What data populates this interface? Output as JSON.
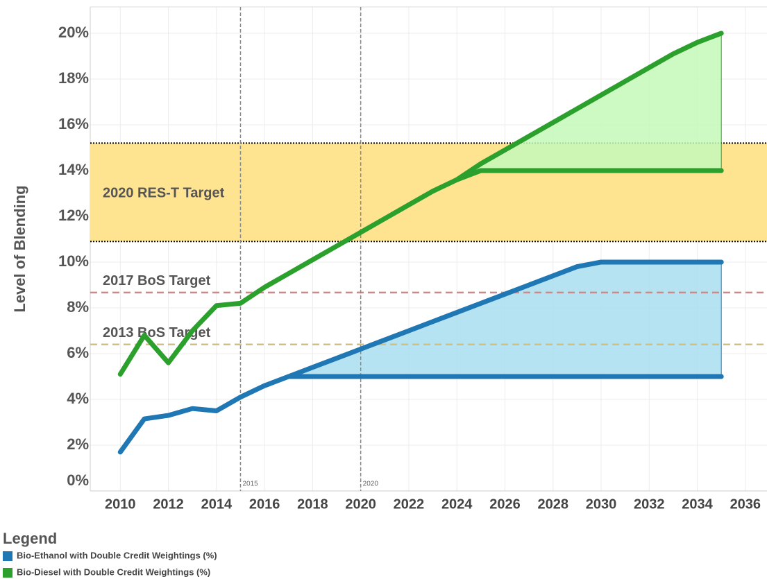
{
  "chart_data": {
    "type": "line",
    "ylabel": "Level of Blending",
    "x": [
      2010,
      2011,
      2012,
      2013,
      2014,
      2015,
      2016,
      2017,
      2018,
      2019,
      2020,
      2021,
      2022,
      2023,
      2024,
      2025,
      2026,
      2027,
      2028,
      2029,
      2030,
      2031,
      2032,
      2033,
      2034,
      2035
    ],
    "series": [
      {
        "name": "Bio-Ethanol with Double Credit Weightings (%)",
        "color": "#1f77b4",
        "fill": "#a9deef",
        "values": [
          1.7,
          3.15,
          3.3,
          3.6,
          3.5,
          4.1,
          4.6,
          5.0,
          5.4,
          5.8,
          6.2,
          6.6,
          7.0,
          7.4,
          7.8,
          8.2,
          8.6,
          9.0,
          9.4,
          9.8,
          10.0,
          10.0,
          10.0,
          10.0,
          10.0,
          10.0
        ],
        "lower_values": [
          null,
          null,
          null,
          null,
          null,
          null,
          null,
          5.0,
          5.0,
          5.0,
          5.0,
          5.0,
          5.0,
          5.0,
          5.0,
          5.0,
          5.0,
          5.0,
          5.0,
          5.0,
          5.0,
          5.0,
          5.0,
          5.0,
          5.0,
          5.0
        ]
      },
      {
        "name": "Bio-Diesel with Double Credit Weightings (%)",
        "color": "#2ca02c",
        "fill": "#c4f8b8",
        "values": [
          5.1,
          6.8,
          5.6,
          7.0,
          8.1,
          8.2,
          8.9,
          9.5,
          10.1,
          10.7,
          11.3,
          11.9,
          12.5,
          13.1,
          13.6,
          14.3,
          14.9,
          15.5,
          16.1,
          16.7,
          17.3,
          17.9,
          18.5,
          19.1,
          19.6,
          20.0
        ],
        "lower_values": [
          null,
          null,
          null,
          null,
          null,
          null,
          null,
          null,
          null,
          null,
          null,
          null,
          null,
          null,
          13.6,
          14.0,
          14.0,
          14.0,
          14.0,
          14.0,
          14.0,
          14.0,
          14.0,
          14.0,
          14.0,
          14.0
        ]
      }
    ],
    "band": {
      "label": "2020 RES-T Target",
      "from": 10.9,
      "to": 15.2,
      "color": "#fee391"
    },
    "reference_lines": [
      {
        "label": "2017 BoS Target",
        "value": 8.67,
        "color": "#c98b8b"
      },
      {
        "label": "2013 BoS Target",
        "value": 6.4,
        "color": "#d2bf82"
      }
    ],
    "x_markers": [
      2015,
      2020
    ],
    "xlim": [
      2008.75,
      2036.9
    ],
    "ylim": [
      0,
      21.15
    ],
    "xticks": [
      2010,
      2012,
      2014,
      2016,
      2018,
      2020,
      2022,
      2024,
      2026,
      2028,
      2030,
      2032,
      2034,
      2036
    ],
    "yticks": [
      {
        "value": 0,
        "label": "0%"
      },
      {
        "value": 2,
        "label": "2%"
      },
      {
        "value": 4,
        "label": "4%"
      },
      {
        "value": 6,
        "label": "6%"
      },
      {
        "value": 8,
        "label": "8%"
      },
      {
        "value": 10,
        "label": "10%"
      },
      {
        "value": 12,
        "label": "12%"
      },
      {
        "value": 14,
        "label": "14%"
      },
      {
        "value": 16,
        "label": "16%"
      },
      {
        "value": 18,
        "label": "18%"
      },
      {
        "value": 20,
        "label": "20%"
      }
    ],
    "grid": true,
    "legend_title": "Legend",
    "legend_position": "bottom-left"
  }
}
